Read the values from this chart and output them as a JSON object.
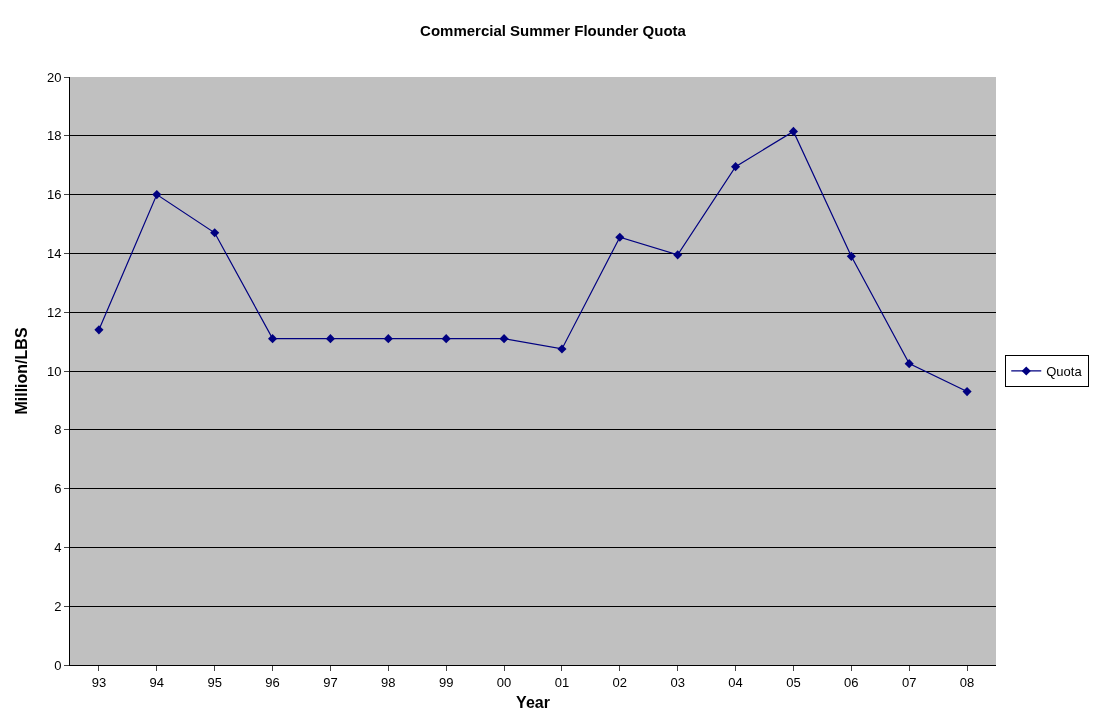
{
  "chart_data": {
    "type": "line",
    "title": "Commercial Summer Flounder Quota",
    "xlabel": "Year",
    "ylabel": "Million/LBS",
    "categories": [
      "93",
      "94",
      "95",
      "96",
      "97",
      "98",
      "99",
      "00",
      "01",
      "02",
      "03",
      "04",
      "05",
      "06",
      "07",
      "08"
    ],
    "series": [
      {
        "name": "Quota",
        "color": "#000080",
        "values": [
          11.4,
          16.0,
          14.7,
          11.1,
          11.1,
          11.1,
          11.1,
          11.1,
          10.75,
          14.55,
          13.95,
          16.95,
          18.15,
          13.9,
          10.25,
          9.3
        ]
      }
    ],
    "ylim": [
      0,
      20
    ],
    "yticks": [
      0,
      2,
      4,
      6,
      8,
      10,
      12,
      14,
      16,
      18,
      20
    ],
    "grid": "y",
    "legend": "right",
    "marker": "diamond",
    "line_style": "solid"
  }
}
